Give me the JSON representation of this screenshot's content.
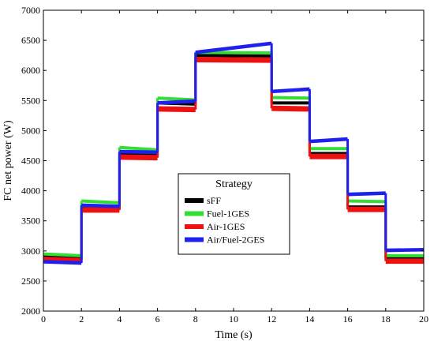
{
  "chart_data": {
    "type": "line",
    "xlabel": "Time (s)",
    "ylabel": "FC net power (W)",
    "xlim": [
      0,
      20
    ],
    "ylim": [
      2000,
      7000
    ],
    "x_ticks": [
      "0",
      "2",
      "4",
      "6",
      "8",
      "10",
      "12",
      "14",
      "16",
      "18",
      "20"
    ],
    "y_ticks": [
      "2000",
      "2500",
      "3000",
      "3500",
      "4000",
      "4500",
      "5000",
      "5500",
      "6000",
      "6500",
      "7000"
    ],
    "grid": false,
    "legend_title": "Strategy",
    "legend_position": "center",
    "series": [
      {
        "name": "sFF",
        "color": "#000000",
        "band": 40,
        "steps": [
          [
            0,
            2,
            2900,
            2880
          ],
          [
            2,
            4,
            3720,
            3700
          ],
          [
            4,
            6,
            4620,
            4600
          ],
          [
            6,
            8,
            5460,
            5440
          ],
          [
            8,
            12,
            6250,
            6240
          ],
          [
            12,
            14,
            5460,
            5460
          ],
          [
            14,
            16,
            4620,
            4620
          ],
          [
            16,
            18,
            3730,
            3730
          ],
          [
            18,
            20,
            2880,
            2880
          ]
        ]
      },
      {
        "name": "Fuel-1GES",
        "color": "#33dd33",
        "band": 50,
        "steps": [
          [
            0,
            2,
            2950,
            2920
          ],
          [
            2,
            4,
            3830,
            3800
          ],
          [
            4,
            6,
            4720,
            4680
          ],
          [
            6,
            8,
            5540,
            5510
          ],
          [
            8,
            12,
            6300,
            6290
          ],
          [
            12,
            14,
            5550,
            5540
          ],
          [
            14,
            16,
            4700,
            4700
          ],
          [
            16,
            18,
            3830,
            3820
          ],
          [
            18,
            20,
            2920,
            2920
          ]
        ]
      },
      {
        "name": "Air-1GES",
        "color": "#ee1111",
        "band": 90,
        "steps": [
          [
            0,
            2,
            2860,
            2840
          ],
          [
            2,
            4,
            3680,
            3680
          ],
          [
            4,
            6,
            4560,
            4550
          ],
          [
            6,
            8,
            5360,
            5350
          ],
          [
            8,
            12,
            6180,
            6170
          ],
          [
            12,
            14,
            5370,
            5360
          ],
          [
            14,
            16,
            4570,
            4570
          ],
          [
            16,
            18,
            3690,
            3690
          ],
          [
            18,
            20,
            2830,
            2830
          ]
        ]
      },
      {
        "name": "Air/Fuel-2GES",
        "color": "#1f1fee",
        "band": 60,
        "steps": [
          [
            0,
            2,
            2820,
            2800
          ],
          [
            2,
            4,
            3760,
            3740
          ],
          [
            4,
            6,
            4650,
            4640
          ],
          [
            6,
            8,
            5460,
            5490
          ],
          [
            8,
            12,
            6300,
            6450
          ],
          [
            12,
            14,
            5650,
            5690
          ],
          [
            14,
            16,
            4820,
            4860
          ],
          [
            16,
            18,
            3940,
            3960
          ],
          [
            18,
            20,
            3010,
            3020
          ]
        ]
      }
    ]
  }
}
